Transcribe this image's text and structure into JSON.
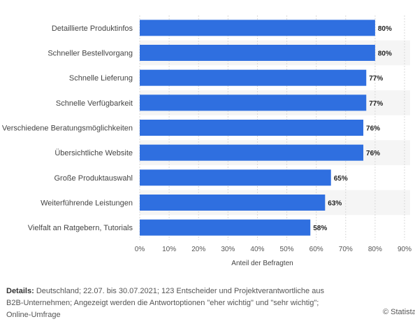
{
  "chart_data": {
    "type": "bar",
    "orientation": "horizontal",
    "categories": [
      "Detaillierte Produktinfos",
      "Schneller Bestellvorgang",
      "Schnelle Lieferung",
      "Schnelle Verfügbarkeit",
      "Verschiedene Beratungsmöglichkeiten",
      "Übersichtliche Website",
      "Große Produktauswahl",
      "Weiterführende Leistungen",
      "Vielfalt an Ratgebern, Tutorials"
    ],
    "values": [
      80,
      80,
      77,
      77,
      76,
      76,
      65,
      63,
      58
    ],
    "value_labels": [
      "80%",
      "80%",
      "77%",
      "77%",
      "76%",
      "76%",
      "65%",
      "63%",
      "58%"
    ],
    "xlabel": "Anteil der Befragten",
    "xlim": [
      0,
      90
    ],
    "xticks": [
      "0%",
      "10%",
      "20%",
      "30%",
      "40%",
      "50%",
      "60%",
      "70%",
      "80%",
      "90%"
    ],
    "grid": true,
    "bar_color": "#2f6fe0",
    "band_color": "#f5f5f5"
  },
  "footer": {
    "details_label": "Details:",
    "details_text": "Deutschland; 22.07. bis 30.07.2021; 123 Entscheider und Projektverantwortliche aus B2B-Unternehmen; Angezeigt werden die Antwortoptionen \"eher wichtig\" und \"sehr wichtig\"; Online-Umfrage",
    "credit": "© Statista"
  }
}
